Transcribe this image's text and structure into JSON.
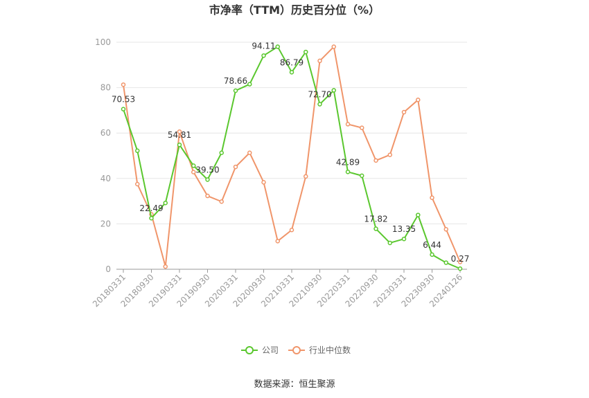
{
  "chart_data": {
    "type": "line",
    "title": "市净率（TTM）历史百分位（%）",
    "source": "数据来源：恒生聚源",
    "ylim": [
      0,
      100
    ],
    "yticks": [
      0,
      20,
      40,
      60,
      80,
      100
    ],
    "grid": true,
    "legend_position": "bottom-center",
    "x": [
      "20180331",
      "20180630",
      "20180930",
      "20181231",
      "20190331",
      "20190630",
      "20190930",
      "20191231",
      "20200331",
      "20200630",
      "20200930",
      "20201231",
      "20210331",
      "20210630",
      "20210930",
      "20211231",
      "20220331",
      "20220630",
      "20220930",
      "20221231",
      "20230331",
      "20230630",
      "20230930",
      "20231231",
      "20240126"
    ],
    "x_tick_labels": [
      "20180331",
      "20180930",
      "20190331",
      "20190930",
      "20200331",
      "20200930",
      "20210331",
      "20210930",
      "20220331",
      "20220930",
      "20230331",
      "20230930",
      "20240126"
    ],
    "series": [
      {
        "name": "公司",
        "color": "#5ac72e",
        "values": [
          70.53,
          52.2,
          22.49,
          29.2,
          54.81,
          45.6,
          39.5,
          51.3,
          78.66,
          81.5,
          94.11,
          98.0,
          86.79,
          95.7,
          72.7,
          78.8,
          42.89,
          41.2,
          17.82,
          11.6,
          13.35,
          23.9,
          6.44,
          2.9,
          0.27
        ],
        "labels": {
          "0": "70.53",
          "2": "22.49",
          "4": "54.81",
          "6": "39.50",
          "8": "78.66",
          "10": "94.11",
          "12": "86.79",
          "14": "72.70",
          "16": "42.89",
          "18": "17.82",
          "20": "13.35",
          "22": "6.44",
          "24": "0.27"
        }
      },
      {
        "name": "行业中位数",
        "color": "#f0956a",
        "values": [
          81.3,
          37.5,
          24.2,
          1.2,
          60.6,
          42.8,
          32.3,
          29.8,
          45.1,
          51.3,
          38.3,
          12.4,
          17.3,
          40.9,
          91.8,
          98.0,
          63.9,
          62.3,
          47.9,
          50.4,
          69.2,
          74.6,
          31.5,
          17.6,
          3.2
        ],
        "labels": {}
      }
    ]
  }
}
